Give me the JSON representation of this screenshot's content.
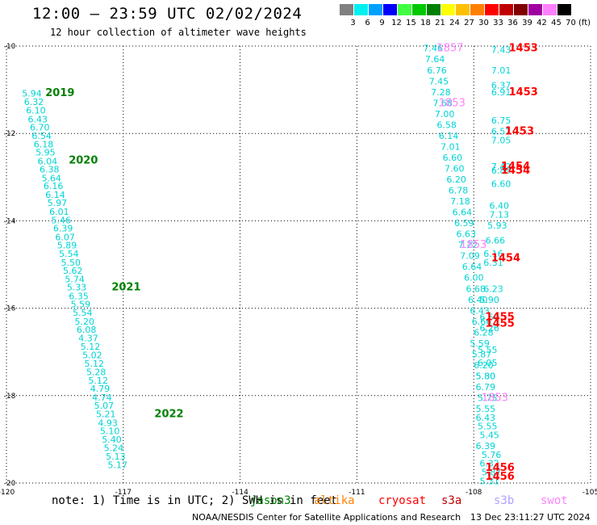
{
  "header": {
    "title": "12:00 – 23:59 UTC 02/02/2024",
    "subtitle": "12 hour collection of altimeter wave heights"
  },
  "legend": {
    "unit": "(ft)",
    "bins": [
      {
        "label": "3",
        "color": "#808080"
      },
      {
        "label": "6",
        "color": "#00f0f0"
      },
      {
        "label": "9",
        "color": "#00a0ff"
      },
      {
        "label": "12",
        "color": "#0000ff"
      },
      {
        "label": "15",
        "color": "#40ff40"
      },
      {
        "label": "18",
        "color": "#00c800"
      },
      {
        "label": "21",
        "color": "#008000"
      },
      {
        "label": "24",
        "color": "#ffff00"
      },
      {
        "label": "27",
        "color": "#ffc000"
      },
      {
        "label": "30",
        "color": "#ff8000"
      },
      {
        "label": "33",
        "color": "#ff0000"
      },
      {
        "label": "36",
        "color": "#c00000"
      },
      {
        "label": "39",
        "color": "#800000"
      },
      {
        "label": "42",
        "color": "#a000a0"
      },
      {
        "label": "45",
        "color": "#ff80ff"
      },
      {
        "label": "70",
        "color": "#000000"
      }
    ]
  },
  "footer": {
    "note": "note: 1) Time is in UTC; 2) SWH is in feet",
    "satellites": [
      {
        "name": "jason3",
        "color": "#008000"
      },
      {
        "name": "altika",
        "color": "#ff8000"
      },
      {
        "name": "cryosat",
        "color": "#ff0000"
      },
      {
        "name": "s3a",
        "color": "#c00000"
      },
      {
        "name": "s3b",
        "color": "#b0a0ff"
      },
      {
        "name": "swot",
        "color": "#ff80ff"
      }
    ],
    "credit": "NOAA/NESDIS Center for Satellite Applications and Research",
    "generated": "13 Dec 23:11:27 UTC 2024"
  },
  "chart_data": {
    "type": "scatter",
    "xlim": [
      -120,
      -105
    ],
    "ylim": [
      -20,
      -10
    ],
    "xticks": [
      {
        "value": -120,
        "label": "-120"
      },
      {
        "value": -117,
        "label": "-117"
      },
      {
        "value": -114,
        "label": "-114"
      },
      {
        "value": -111,
        "label": "-111"
      },
      {
        "value": -108,
        "label": "-108"
      },
      {
        "value": -105,
        "label": "-105"
      }
    ],
    "yticks": [
      {
        "value": -10,
        "label": "-10"
      },
      {
        "value": -12,
        "label": "-12"
      },
      {
        "value": -14,
        "label": "-14"
      },
      {
        "value": -16,
        "label": "-16"
      },
      {
        "value": -18,
        "label": "-18"
      },
      {
        "value": -20,
        "label": "-20"
      }
    ],
    "grid": true,
    "swh_ft": [
      {
        "x": -119.6,
        "y": -11.08,
        "v": "5.94"
      },
      {
        "x": -119.55,
        "y": -11.28,
        "v": "6.32"
      },
      {
        "x": -119.5,
        "y": -11.47,
        "v": "6.10"
      },
      {
        "x": -119.45,
        "y": -11.67,
        "v": "6.43"
      },
      {
        "x": -119.4,
        "y": -11.86,
        "v": "6.70"
      },
      {
        "x": -119.35,
        "y": -12.05,
        "v": "6.54"
      },
      {
        "x": -119.3,
        "y": -12.25,
        "v": "6.18"
      },
      {
        "x": -119.25,
        "y": -12.43,
        "v": "5.95"
      },
      {
        "x": -119.2,
        "y": -12.63,
        "v": "6.04"
      },
      {
        "x": -119.15,
        "y": -12.82,
        "v": "6.38"
      },
      {
        "x": -119.1,
        "y": -13.02,
        "v": "5.64"
      },
      {
        "x": -119.05,
        "y": -13.2,
        "v": "6.16"
      },
      {
        "x": -119.0,
        "y": -13.4,
        "v": "6.14"
      },
      {
        "x": -118.95,
        "y": -13.59,
        "v": "5.97"
      },
      {
        "x": -118.9,
        "y": -13.79,
        "v": "6.01"
      },
      {
        "x": -118.85,
        "y": -13.98,
        "v": "5.46"
      },
      {
        "x": -118.8,
        "y": -14.17,
        "v": "6.39"
      },
      {
        "x": -118.75,
        "y": -14.37,
        "v": "6.07"
      },
      {
        "x": -118.7,
        "y": -14.56,
        "v": "5.89"
      },
      {
        "x": -118.65,
        "y": -14.75,
        "v": "5.54"
      },
      {
        "x": -118.6,
        "y": -14.95,
        "v": "5.50"
      },
      {
        "x": -118.55,
        "y": -15.14,
        "v": "5.62"
      },
      {
        "x": -118.5,
        "y": -15.33,
        "v": "5.74"
      },
      {
        "x": -118.45,
        "y": -15.52,
        "v": "5.33"
      },
      {
        "x": -118.4,
        "y": -15.72,
        "v": "6.35"
      },
      {
        "x": -118.35,
        "y": -15.91,
        "v": "5.59"
      },
      {
        "x": -118.3,
        "y": -16.1,
        "v": "5.54"
      },
      {
        "x": -118.25,
        "y": -16.3,
        "v": "5.20"
      },
      {
        "x": -118.2,
        "y": -16.49,
        "v": "6.08"
      },
      {
        "x": -118.15,
        "y": -16.68,
        "v": "4.37"
      },
      {
        "x": -118.1,
        "y": -16.88,
        "v": "5.12"
      },
      {
        "x": -118.05,
        "y": -17.07,
        "v": "5.02"
      },
      {
        "x": -118.0,
        "y": -17.26,
        "v": "5.12"
      },
      {
        "x": -117.95,
        "y": -17.46,
        "v": "5.28"
      },
      {
        "x": -117.9,
        "y": -17.65,
        "v": "5.12"
      },
      {
        "x": -117.85,
        "y": -17.84,
        "v": "4.79"
      },
      {
        "x": -117.8,
        "y": -18.04,
        "v": "4.74"
      },
      {
        "x": -117.75,
        "y": -18.23,
        "v": "5.07"
      },
      {
        "x": -117.7,
        "y": -18.42,
        "v": "5.21"
      },
      {
        "x": -117.65,
        "y": -18.62,
        "v": "4.93"
      },
      {
        "x": -117.6,
        "y": -18.81,
        "v": "5.10"
      },
      {
        "x": -117.55,
        "y": -19.0,
        "v": "5.40"
      },
      {
        "x": -117.5,
        "y": -19.2,
        "v": "5.24"
      },
      {
        "x": -117.45,
        "y": -19.39,
        "v": "5.13"
      },
      {
        "x": -117.4,
        "y": -19.58,
        "v": "5.17"
      },
      {
        "x": -109.3,
        "y": -10.05,
        "v": "7.46"
      },
      {
        "x": -109.25,
        "y": -10.3,
        "v": "7.64"
      },
      {
        "x": -109.2,
        "y": -10.55,
        "v": "6.76"
      },
      {
        "x": -109.15,
        "y": -10.8,
        "v": "7.45"
      },
      {
        "x": -109.1,
        "y": -11.05,
        "v": "7.28"
      },
      {
        "x": -109.05,
        "y": -11.3,
        "v": "7.68"
      },
      {
        "x": -109.0,
        "y": -11.55,
        "v": "7.00"
      },
      {
        "x": -108.95,
        "y": -11.8,
        "v": "6.58"
      },
      {
        "x": -108.9,
        "y": -12.05,
        "v": "6.14"
      },
      {
        "x": -108.85,
        "y": -12.3,
        "v": "7.01"
      },
      {
        "x": -108.8,
        "y": -12.55,
        "v": "6.60"
      },
      {
        "x": -108.75,
        "y": -12.8,
        "v": "7.60"
      },
      {
        "x": -108.7,
        "y": -13.05,
        "v": "6.20"
      },
      {
        "x": -108.65,
        "y": -13.3,
        "v": "6.78"
      },
      {
        "x": -108.6,
        "y": -13.55,
        "v": "7.18"
      },
      {
        "x": -108.55,
        "y": -13.8,
        "v": "6.64"
      },
      {
        "x": -108.5,
        "y": -14.05,
        "v": "6.59"
      },
      {
        "x": -108.45,
        "y": -14.3,
        "v": "6.63"
      },
      {
        "x": -108.4,
        "y": -14.55,
        "v": "7.22"
      },
      {
        "x": -108.35,
        "y": -14.8,
        "v": "7.09"
      },
      {
        "x": -108.3,
        "y": -15.05,
        "v": "6.64"
      },
      {
        "x": -108.25,
        "y": -15.3,
        "v": "6.00"
      },
      {
        "x": -108.2,
        "y": -15.55,
        "v": "6.68"
      },
      {
        "x": -108.15,
        "y": -15.8,
        "v": "6.40"
      },
      {
        "x": -108.1,
        "y": -16.05,
        "v": "6.43"
      },
      {
        "x": -108.05,
        "y": -16.3,
        "v": "6.66"
      },
      {
        "x": -108.0,
        "y": -16.55,
        "v": "6.28"
      },
      {
        "x": -108.1,
        "y": -16.8,
        "v": "5.59"
      },
      {
        "x": -108.05,
        "y": -17.05,
        "v": "5.87"
      },
      {
        "x": -108.0,
        "y": -17.3,
        "v": "6.20"
      },
      {
        "x": -107.95,
        "y": -17.55,
        "v": "5.80"
      },
      {
        "x": -107.95,
        "y": -17.8,
        "v": "6.79"
      },
      {
        "x": -107.9,
        "y": -18.05,
        "v": "5.75"
      },
      {
        "x": -107.95,
        "y": -18.3,
        "v": "5.55"
      },
      {
        "x": -107.95,
        "y": -18.5,
        "v": "6.43"
      },
      {
        "x": -107.9,
        "y": -18.7,
        "v": "5.55"
      },
      {
        "x": -107.85,
        "y": -18.9,
        "v": "5.45"
      },
      {
        "x": -107.95,
        "y": -19.15,
        "v": "6.39"
      },
      {
        "x": -107.8,
        "y": -19.35,
        "v": "5.76"
      },
      {
        "x": -107.85,
        "y": -19.55,
        "v": "6.32"
      },
      {
        "x": -107.8,
        "y": -19.75,
        "v": "5.87"
      },
      {
        "x": -107.85,
        "y": -19.95,
        "v": "5.31"
      },
      {
        "x": -108.95,
        "y": -10.05,
        "v": "1857",
        "src": "swot"
      },
      {
        "x": -108.9,
        "y": -11.3,
        "v": "1853",
        "src": "swot"
      },
      {
        "x": -108.35,
        "y": -14.55,
        "v": "1853",
        "src": "swot"
      },
      {
        "x": -107.8,
        "y": -18.05,
        "v": "1853",
        "src": "swot"
      },
      {
        "x": -107.55,
        "y": -10.08,
        "v": "7.43"
      },
      {
        "x": -107.55,
        "y": -10.55,
        "v": "7.01"
      },
      {
        "x": -107.55,
        "y": -10.9,
        "v": "6.37"
      },
      {
        "x": -107.55,
        "y": -11.05,
        "v": "6.91"
      },
      {
        "x": -107.55,
        "y": -11.7,
        "v": "6.75"
      },
      {
        "x": -107.55,
        "y": -11.95,
        "v": "6.52"
      },
      {
        "x": -107.55,
        "y": -12.15,
        "v": "7.05"
      },
      {
        "x": -107.55,
        "y": -12.75,
        "v": "7.42"
      },
      {
        "x": -107.55,
        "y": -12.85,
        "v": "6.89"
      },
      {
        "x": -107.55,
        "y": -13.15,
        "v": "6.60"
      },
      {
        "x": -107.6,
        "y": -13.65,
        "v": "6.40"
      },
      {
        "x": -107.6,
        "y": -13.85,
        "v": "7.13"
      },
      {
        "x": -107.65,
        "y": -14.1,
        "v": "5.93"
      },
      {
        "x": -107.7,
        "y": -14.45,
        "v": "6.66"
      },
      {
        "x": -107.75,
        "y": -14.75,
        "v": "6.16"
      },
      {
        "x": -107.75,
        "y": -14.95,
        "v": "6.31"
      },
      {
        "x": -107.75,
        "y": -15.55,
        "v": "6.23"
      },
      {
        "x": -107.85,
        "y": -15.8,
        "v": "5.90"
      },
      {
        "x": -107.85,
        "y": -16.2,
        "v": "6.59"
      },
      {
        "x": -107.85,
        "y": -16.45,
        "v": "6.26"
      },
      {
        "x": -107.9,
        "y": -16.95,
        "v": "5.55"
      },
      {
        "x": -107.9,
        "y": -17.25,
        "v": "6.05"
      },
      {
        "x": -107.95,
        "y": -17.55,
        "v": "5.80"
      },
      {
        "x": -107.1,
        "y": -10.05,
        "v": "1453",
        "src": "cryosat"
      },
      {
        "x": -107.1,
        "y": -11.05,
        "v": "1453",
        "src": "cryosat"
      },
      {
        "x": -107.2,
        "y": -11.95,
        "v": "1453",
        "src": "cryosat"
      },
      {
        "x": -107.3,
        "y": -12.75,
        "v": "1454",
        "src": "cryosat"
      },
      {
        "x": -107.3,
        "y": -12.85,
        "v": "1454",
        "src": "cryosat"
      },
      {
        "x": -107.55,
        "y": -14.85,
        "v": "1454",
        "src": "cryosat"
      },
      {
        "x": -107.7,
        "y": -16.2,
        "v": "1455",
        "src": "cryosat"
      },
      {
        "x": -107.7,
        "y": -16.35,
        "v": "1455",
        "src": "cryosat"
      },
      {
        "x": -107.7,
        "y": -19.65,
        "v": "1456",
        "src": "cryosat"
      },
      {
        "x": -107.7,
        "y": -19.85,
        "v": "1456",
        "src": "cryosat"
      }
    ],
    "annotations": [
      {
        "x": -119.0,
        "y": -11.05,
        "text": "2019"
      },
      {
        "x": -118.4,
        "y": -12.6,
        "text": "2020"
      },
      {
        "x": -117.3,
        "y": -15.5,
        "text": "2021"
      },
      {
        "x": -116.2,
        "y": -18.4,
        "text": "2022"
      }
    ]
  }
}
